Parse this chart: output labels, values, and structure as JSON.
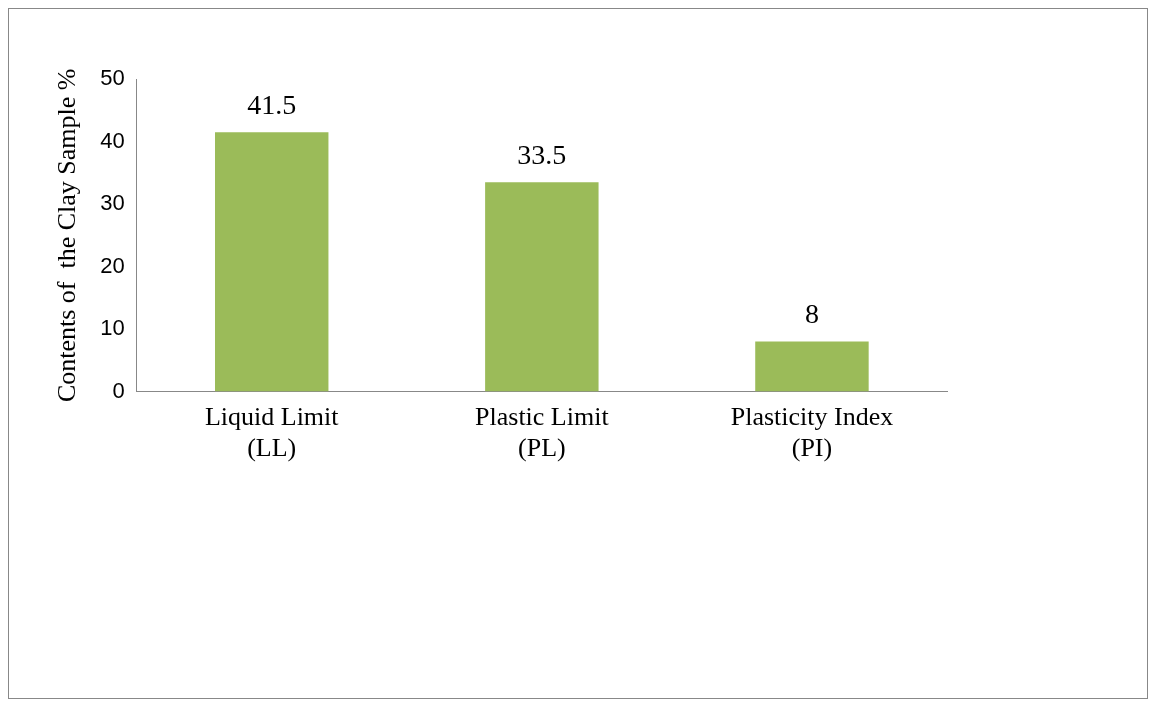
{
  "chart_data": {
    "type": "bar",
    "ylabel": "Contents of  the Clay Sample %",
    "categories": [
      "Liquid Limit (LL)",
      "Plastic Limit (PL)",
      "Plasticity Index (PI)"
    ],
    "values": [
      41.5,
      33.5,
      8
    ],
    "color": "#9bbb59",
    "ylim": [
      0,
      50
    ],
    "yticks": [
      0,
      10,
      20,
      30,
      40,
      50
    ],
    "grid": false,
    "legend": false,
    "data_labels": true
  }
}
